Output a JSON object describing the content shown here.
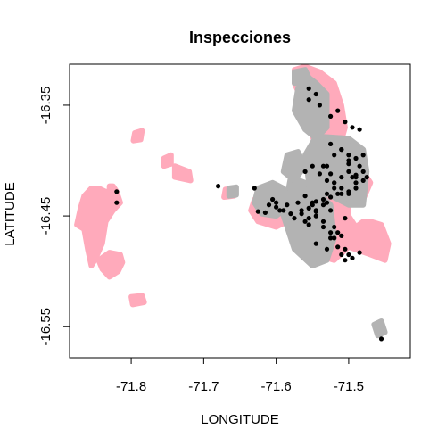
{
  "chart_data": {
    "type": "scatter",
    "title": "Inspecciones",
    "xlabel": "LONGITUDE",
    "ylabel": "LATITUDE",
    "xlim": [
      -71.885,
      -71.415
    ],
    "ylim": [
      -16.578,
      -16.313
    ],
    "x_ticks": [
      {
        "value": -71.8,
        "label": "-71.8"
      },
      {
        "value": -71.7,
        "label": "-71.7"
      },
      {
        "value": -71.6,
        "label": "-71.6"
      },
      {
        "value": -71.5,
        "label": "-71.5"
      }
    ],
    "y_ticks": [
      {
        "value": -16.35,
        "label": "-16.35"
      },
      {
        "value": -16.45,
        "label": "-16.45"
      },
      {
        "value": -16.55,
        "label": "-16.55"
      }
    ],
    "grid": false,
    "legend": "none",
    "series": [
      {
        "color": "#ffaabb",
        "type": "region",
        "shapes": [
          {
            "x": [
              -71.865,
              -71.855,
              -71.845,
              -71.835,
              -71.83,
              -71.83,
              -71.825,
              -71.82,
              -71.815,
              -71.825,
              -71.835,
              -71.84,
              -71.85,
              -71.855,
              -71.86,
              -71.865,
              -71.875,
              -71.87
            ],
            "y": [
              -16.432,
              -16.425,
              -16.425,
              -16.428,
              -16.428,
              -16.423,
              -16.423,
              -16.428,
              -16.438,
              -16.445,
              -16.455,
              -16.475,
              -16.49,
              -16.495,
              -16.48,
              -16.462,
              -16.458,
              -16.443
            ]
          },
          {
            "x": [
              -71.83,
              -71.815,
              -71.812,
              -71.818,
              -71.83,
              -71.84,
              -71.845
            ],
            "y": [
              -16.483,
              -16.485,
              -16.492,
              -16.5,
              -16.505,
              -16.498,
              -16.49
            ]
          },
          {
            "x": [
              -71.8,
              -71.785,
              -71.782,
              -71.798
            ],
            "y": [
              -16.523,
              -16.522,
              -16.528,
              -16.53
            ]
          },
          {
            "x": [
              -71.795,
              -71.785,
              -71.787,
              -71.797
            ],
            "y": [
              -16.375,
              -16.373,
              -16.381,
              -16.382
            ]
          },
          {
            "x": [
              -71.755,
              -71.745,
              -71.745,
              -71.755
            ],
            "y": [
              -16.398,
              -16.395,
              -16.403,
              -16.405
            ]
          },
          {
            "x": [
              -71.74,
              -71.72,
              -71.718,
              -71.74
            ],
            "y": [
              -16.405,
              -16.41,
              -16.418,
              -16.415
            ]
          },
          {
            "x": [
              -71.67,
              -71.66,
              -71.658,
              -71.672
            ],
            "y": [
              -16.426,
              -16.425,
              -16.432,
              -16.433
            ]
          },
          {
            "x": [
              -71.53,
              -71.51,
              -71.5,
              -71.5,
              -71.49,
              -71.48,
              -71.47,
              -71.455,
              -71.445,
              -71.45,
              -71.47,
              -71.5,
              -71.52,
              -71.545,
              -71.55
            ],
            "y": [
              -16.418,
              -16.418,
              -16.43,
              -16.45,
              -16.46,
              -16.455,
              -16.455,
              -16.458,
              -16.475,
              -16.49,
              -16.485,
              -16.478,
              -16.49,
              -16.485,
              -16.455
            ]
          },
          {
            "x": [
              -71.575,
              -71.56,
              -71.54,
              -71.52,
              -71.51,
              -71.505,
              -71.52,
              -71.54,
              -71.555,
              -71.565,
              -71.575
            ],
            "y": [
              -16.318,
              -16.315,
              -16.32,
              -16.33,
              -16.35,
              -16.37,
              -16.405,
              -16.395,
              -16.37,
              -16.345,
              -16.33
            ]
          },
          {
            "x": [
              -71.505,
              -71.485,
              -71.47,
              -71.48,
              -71.505
            ],
            "y": [
              -16.405,
              -16.405,
              -16.42,
              -16.435,
              -16.425
            ]
          },
          {
            "x": [
              -71.63,
              -71.61,
              -71.59,
              -71.585,
              -71.6,
              -71.625,
              -71.635
            ],
            "y": [
              -16.435,
              -16.43,
              -16.44,
              -16.455,
              -16.46,
              -16.455,
              -16.445
            ]
          }
        ]
      },
      {
        "color": "#b3b3b3",
        "type": "region",
        "shapes": [
          {
            "x": [
              -71.57,
              -71.555,
              -71.545,
              -71.53,
              -71.53,
              -71.545,
              -71.56,
              -71.575
            ],
            "y": [
              -16.335,
              -16.325,
              -16.33,
              -16.34,
              -16.37,
              -16.38,
              -16.372,
              -16.355
            ]
          },
          {
            "x": [
              -71.545,
              -71.5,
              -71.48,
              -71.475,
              -71.48,
              -71.5,
              -71.53,
              -71.555,
              -71.56
            ],
            "y": [
              -16.378,
              -16.38,
              -16.39,
              -16.41,
              -16.44,
              -16.44,
              -16.43,
              -16.42,
              -16.395
            ]
          },
          {
            "x": [
              -71.58,
              -71.56,
              -71.54,
              -71.525,
              -71.52,
              -71.53,
              -71.55,
              -71.575,
              -71.59
            ],
            "y": [
              -16.415,
              -16.42,
              -16.43,
              -16.44,
              -16.47,
              -16.49,
              -16.495,
              -16.48,
              -16.45
            ]
          },
          {
            "x": [
              -71.625,
              -71.605,
              -71.59,
              -71.58,
              -71.6,
              -71.62,
              -71.63
            ],
            "y": [
              -16.425,
              -16.42,
              -16.425,
              -16.44,
              -16.45,
              -16.448,
              -16.438
            ]
          },
          {
            "x": [
              -71.585,
              -71.57,
              -71.56,
              -71.575,
              -71.59
            ],
            "y": [
              -16.395,
              -16.392,
              -16.405,
              -16.418,
              -16.41
            ]
          },
          {
            "x": [
              -71.575,
              -71.56,
              -71.555,
              -71.56,
              -71.575
            ],
            "y": [
              -16.32,
              -16.318,
              -16.325,
              -16.332,
              -16.33
            ]
          },
          {
            "x": [
              -71.665,
              -71.655,
              -71.655,
              -71.665
            ],
            "y": [
              -16.425,
              -16.424,
              -16.431,
              -16.432
            ]
          },
          {
            "x": [
              -71.465,
              -71.455,
              -71.45,
              -71.46
            ],
            "y": [
              -16.548,
              -16.545,
              -16.555,
              -16.558
            ]
          }
        ]
      },
      {
        "color": "#000000",
        "type": "points",
        "x": [
          -71.82,
          -71.82,
          -71.68,
          -71.63,
          -71.625,
          -71.615,
          -71.61,
          -71.605,
          -71.6,
          -71.595,
          -71.59,
          -71.6,
          -71.585,
          -71.57,
          -71.565,
          -71.56,
          -71.555,
          -71.555,
          -71.545,
          -71.535,
          -71.53,
          -71.525,
          -71.52,
          -71.515,
          -71.51,
          -71.505,
          -71.5,
          -71.495,
          -71.49,
          -71.485,
          -71.48,
          -71.475,
          -71.52,
          -71.51,
          -71.5,
          -71.53,
          -71.55,
          -71.56,
          -71.54,
          -71.53,
          -71.52,
          -71.51,
          -71.5,
          -71.49,
          -71.53,
          -71.52,
          -71.51,
          -71.5,
          -71.49,
          -71.48,
          -71.555,
          -71.545,
          -71.555,
          -71.54,
          -71.525,
          -71.515,
          -71.505,
          -71.495,
          -71.485,
          -71.52,
          -71.51,
          -71.5,
          -71.49,
          -71.455,
          -71.545,
          -71.535,
          -71.525,
          -71.515,
          -71.505,
          -71.495,
          -71.485,
          -71.545,
          -71.535,
          -71.525,
          -71.505,
          -71.56,
          -71.55,
          -71.575,
          -71.58,
          -71.565,
          -71.555,
          -71.545,
          -71.535,
          -71.525,
          -71.53,
          -71.52,
          -71.51,
          -71.5,
          -71.49,
          -71.48,
          -71.535,
          -71.525,
          -71.545,
          -71.55,
          -71.515,
          -71.5,
          -71.51,
          -71.525
        ],
        "y": [
          -16.428,
          -16.438,
          -16.423,
          -16.425,
          -16.446,
          -16.447,
          -16.44,
          -16.435,
          -16.442,
          -16.445,
          -16.445,
          -16.438,
          -16.44,
          -16.438,
          -16.445,
          -16.455,
          -16.458,
          -16.452,
          -16.446,
          -16.44,
          -16.438,
          -16.445,
          -16.46,
          -16.465,
          -16.485,
          -16.49,
          -16.485,
          -16.415,
          -16.413,
          -16.405,
          -16.41,
          -16.415,
          -16.395,
          -16.39,
          -16.4,
          -16.405,
          -16.405,
          -16.41,
          -16.412,
          -16.418,
          -16.42,
          -16.415,
          -16.41,
          -16.42,
          -16.43,
          -16.425,
          -16.43,
          -16.428,
          -16.425,
          -16.418,
          -16.335,
          -16.34,
          -16.345,
          -16.35,
          -16.36,
          -16.355,
          -16.365,
          -16.37,
          -16.372,
          -16.42,
          -16.425,
          -16.43,
          -16.415,
          -16.561,
          -16.45,
          -16.455,
          -16.47,
          -16.478,
          -16.48,
          -16.488,
          -16.483,
          -16.475,
          -16.46,
          -16.465,
          -16.452,
          -16.432,
          -16.44,
          -16.452,
          -16.448,
          -16.448,
          -16.443,
          -16.437,
          -16.435,
          -16.433,
          -16.48,
          -16.47,
          -16.468,
          -16.403,
          -16.398,
          -16.395,
          -16.405,
          -16.412,
          -16.445,
          -16.438,
          -16.43,
          -16.395,
          -16.39,
          -16.385
        ]
      }
    ]
  }
}
